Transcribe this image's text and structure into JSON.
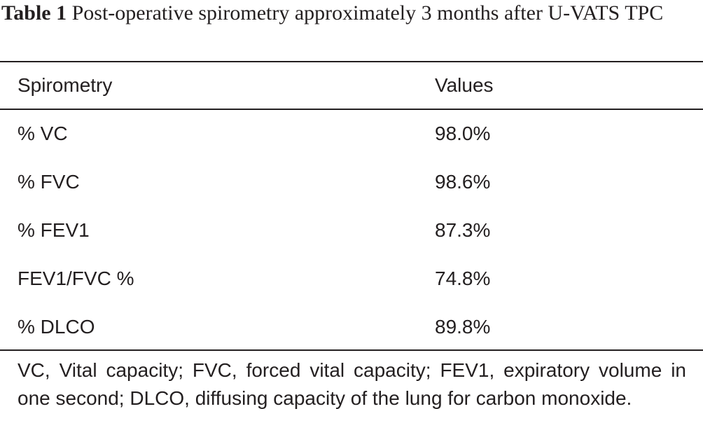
{
  "caption": {
    "label": "Table 1",
    "text": "Post-operative spirometry approximately 3 months after U-VATS TPC"
  },
  "table": {
    "headers": [
      "Spirometry",
      "Values"
    ],
    "rows": [
      [
        "% VC",
        "98.0%"
      ],
      [
        "% FVC",
        "98.6%"
      ],
      [
        "% FEV1",
        "87.3%"
      ],
      [
        "FEV1/FVC %",
        "74.8%"
      ],
      [
        "% DLCO",
        "89.8%"
      ]
    ]
  },
  "footnote": "VC, Vital capacity; FVC, forced vital capacity; FEV1, expiratory volume in one second; DLCO, diffusing capacity of the lung for carbon monoxide."
}
